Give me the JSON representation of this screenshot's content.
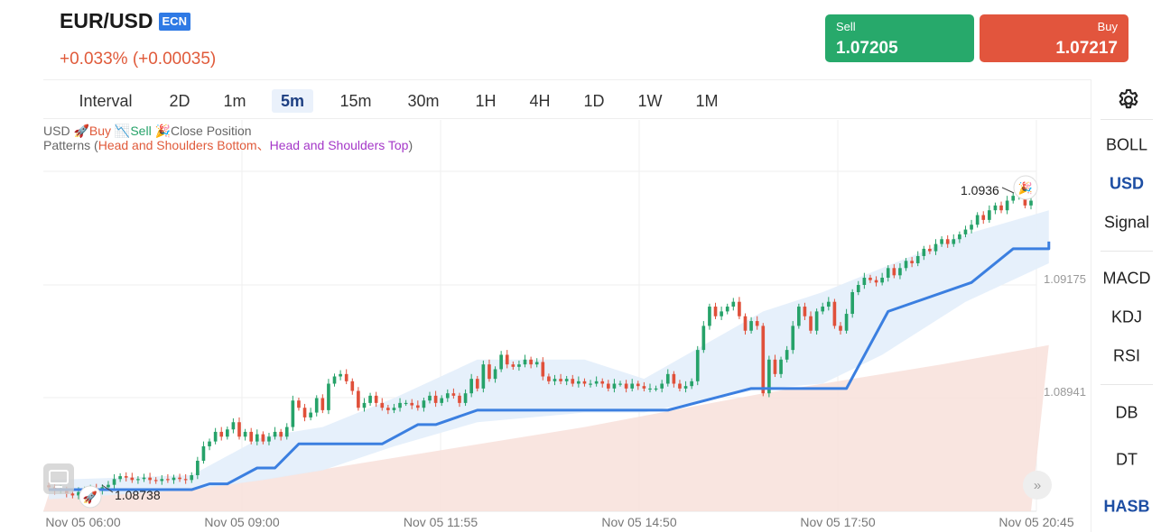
{
  "header": {
    "symbol": "EUR/USD",
    "badge": "ECN",
    "change": "+0.033% (+0.00035)",
    "sell_label": "Sell",
    "sell_price": "1.07205",
    "buy_label": "Buy",
    "buy_price": "1.07217"
  },
  "intervals": {
    "label": "Interval",
    "items": [
      "2D",
      "1m",
      "5m",
      "15m",
      "30m",
      "1H",
      "4H",
      "1D",
      "1W",
      "1M"
    ],
    "active": "5m"
  },
  "sidebar": {
    "items": [
      "BOLL",
      "USD",
      "Signal",
      "MACD",
      "KDJ",
      "RSI",
      "DB",
      "DT",
      "HASB"
    ],
    "active": [
      "USD",
      "HASB"
    ]
  },
  "legend": {
    "prefix": "USD",
    "buy": "Buy",
    "sell": "Sell",
    "close": "Close Position",
    "patterns_prefix": "Patterns (",
    "pattern1": "Head and Shoulders Bottom",
    "separator": "、",
    "pattern2": "Head and Shoulders Top",
    "patterns_suffix": ")"
  },
  "colors": {
    "up": "#26a269",
    "down": "#e0503a",
    "signal_line": "#3b7fe0",
    "band": "#e3eefb",
    "cloud": "#f8e1db",
    "accent": "#1d4ea3"
  },
  "chart_data": {
    "type": "candlestick",
    "x_ticks": [
      "Nov 05 06:00",
      "Nov 05 09:00",
      "Nov 05 11:55",
      "Nov 05 14:50",
      "Nov 05 17:50",
      "Nov 05 20:45"
    ],
    "y_ticks": [
      1.09175,
      1.08941
    ],
    "annotations": [
      {
        "label": "1.0936",
        "price": 1.0936,
        "marker": "close"
      },
      {
        "label": "1.08738",
        "price": 1.08738,
        "marker": "buy"
      }
    ],
    "buy_signal_price": 1.08738,
    "close_signal_price": 1.0936,
    "close_series": [
      1.08755,
      1.08748,
      1.0875,
      1.08742,
      1.08738,
      1.08745,
      1.0875,
      1.08752,
      1.08748,
      1.08755,
      1.0876,
      1.08772,
      1.08778,
      1.08775,
      1.0877,
      1.08772,
      1.08775,
      1.0877,
      1.08768,
      1.08772,
      1.0877,
      1.08775,
      1.08772,
      1.0877,
      1.0878,
      1.0881,
      1.0884,
      1.0885,
      1.0887,
      1.0886,
      1.08875,
      1.0889,
      1.0886,
      1.0887,
      1.0885,
      1.08865,
      1.0885,
      1.0886,
      1.0887,
      1.0886,
      1.0888,
      1.08935,
      1.0892,
      1.089,
      1.0891,
      1.0894,
      1.08915,
      1.0897,
      1.08985,
      1.0899,
      1.08975,
      1.08955,
      1.0892,
      1.0893,
      1.08945,
      1.0893,
      1.0892,
      1.08915,
      1.0892,
      1.0893,
      1.0893,
      1.08925,
      1.0892,
      1.08935,
      1.08945,
      1.0893,
      1.0894,
      1.0895,
      1.08945,
      1.0893,
      1.0895,
      1.0898,
      1.0896,
      1.0901,
      1.0898,
      1.09,
      1.0903,
      1.0901,
      1.09005,
      1.0901,
      1.0902,
      1.0901,
      1.09015,
      1.08985,
      1.08975,
      1.0898,
      1.08975,
      1.0898,
      1.0897,
      1.08975,
      1.0897,
      1.0897,
      1.08975,
      1.0897,
      1.0896,
      1.0897,
      1.0897,
      1.0896,
      1.0897,
      1.08965,
      1.0896,
      1.0896,
      1.0896,
      1.0897,
      1.0899,
      1.0897,
      1.0896,
      1.08965,
      1.08975,
      1.0904,
      1.0909,
      1.0913,
      1.0911,
      1.0912,
      1.0913,
      1.0914,
      1.0911,
      1.0908,
      1.091,
      1.0909,
      1.0895,
      1.0902,
      1.0899,
      1.0902,
      1.0904,
      1.0909,
      1.0913,
      1.0911,
      1.0908,
      1.0912,
      1.0913,
      1.0914,
      1.0909,
      1.0908,
      1.09115,
      1.0916,
      1.09175,
      1.0919,
      1.09185,
      1.0918,
      1.0919,
      1.0921,
      1.09195,
      1.0921,
      1.09225,
      1.0922,
      1.09235,
      1.0925,
      1.09245,
      1.0926,
      1.0927,
      1.0926,
      1.0927,
      1.0928,
      1.0929,
      1.093,
      1.0932,
      1.0931,
      1.0933,
      1.0934,
      1.0933,
      1.0935,
      1.0936,
      1.0937,
      1.0934,
      1.0935
    ],
    "signal_line": [
      [
        0,
        1.0875
      ],
      [
        24,
        1.0875
      ],
      [
        27,
        1.08762
      ],
      [
        30,
        1.08762
      ],
      [
        35,
        1.08795
      ],
      [
        38,
        1.08795
      ],
      [
        42,
        1.08845
      ],
      [
        56,
        1.08845
      ],
      [
        62,
        1.08885
      ],
      [
        65,
        1.08885
      ],
      [
        72,
        1.08915
      ],
      [
        104,
        1.08915
      ],
      [
        118,
        1.0896
      ],
      [
        134,
        1.0896
      ],
      [
        141,
        1.0912
      ],
      [
        155,
        1.0918
      ],
      [
        162,
        1.0925
      ],
      [
        168,
        1.0925
      ],
      [
        168,
        1.09265
      ]
    ],
    "band_upper": [
      [
        0,
        1.0877
      ],
      [
        24,
        1.0878
      ],
      [
        36,
        1.0886
      ],
      [
        46,
        1.0888
      ],
      [
        58,
        1.0894
      ],
      [
        72,
        1.0902
      ],
      [
        90,
        1.0902
      ],
      [
        100,
        1.0898
      ],
      [
        120,
        1.0912
      ],
      [
        130,
        1.0916
      ],
      [
        140,
        1.0921
      ],
      [
        154,
        1.0928
      ],
      [
        168,
        1.0933
      ]
    ],
    "band_lower": [
      [
        0,
        1.0873
      ],
      [
        24,
        1.0875
      ],
      [
        36,
        1.0877
      ],
      [
        46,
        1.0879
      ],
      [
        58,
        1.0884
      ],
      [
        72,
        1.0889
      ],
      [
        90,
        1.0891
      ],
      [
        100,
        1.0891
      ],
      [
        120,
        1.0896
      ],
      [
        130,
        1.0897
      ],
      [
        140,
        1.0903
      ],
      [
        154,
        1.0914
      ],
      [
        168,
        1.0922
      ]
    ],
    "cloud_upper": [
      [
        0,
        1.0874
      ],
      [
        30,
        1.0876
      ],
      [
        60,
        1.0882
      ],
      [
        90,
        1.0888
      ],
      [
        120,
        1.0895
      ],
      [
        150,
        1.0901
      ],
      [
        168,
        1.0905
      ]
    ]
  }
}
